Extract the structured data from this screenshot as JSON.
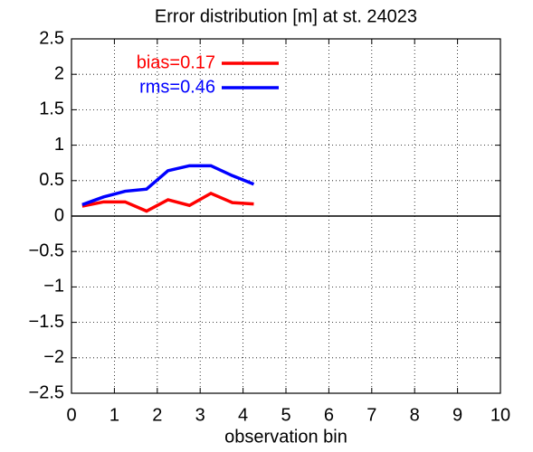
{
  "chart_data": {
    "type": "line",
    "title": "Error distribution [m] at st. 24023",
    "x_label": "observation bin",
    "x": [
      0.25,
      0.75,
      1.25,
      1.75,
      2.25,
      2.75,
      3.25,
      3.75,
      4.25
    ],
    "series": [
      {
        "name": "bias=0.17",
        "color": "#ff0000",
        "values": [
          0.14,
          0.2,
          0.2,
          0.07,
          0.23,
          0.15,
          0.32,
          0.19,
          0.17
        ]
      },
      {
        "name": "rms=0.46",
        "color": "#0000ff",
        "values": [
          0.16,
          0.27,
          0.35,
          0.38,
          0.64,
          0.71,
          0.71,
          0.57,
          0.45
        ]
      }
    ],
    "xlim": [
      0,
      10
    ],
    "xticks": [
      0,
      1,
      2,
      3,
      4,
      5,
      6,
      7,
      8,
      9,
      10
    ],
    "ylim": [
      -2.5,
      2.5
    ],
    "yticks": [
      {
        "value": -2.5,
        "label": "−2.5"
      },
      {
        "value": -2,
        "label": "−2"
      },
      {
        "value": -1.5,
        "label": "−1.5"
      },
      {
        "value": -1,
        "label": "−1"
      },
      {
        "value": -0.5,
        "label": "−0.5"
      },
      0,
      0.5,
      1,
      1.5,
      2,
      2.5
    ],
    "grid": true,
    "legend": "upper left"
  }
}
